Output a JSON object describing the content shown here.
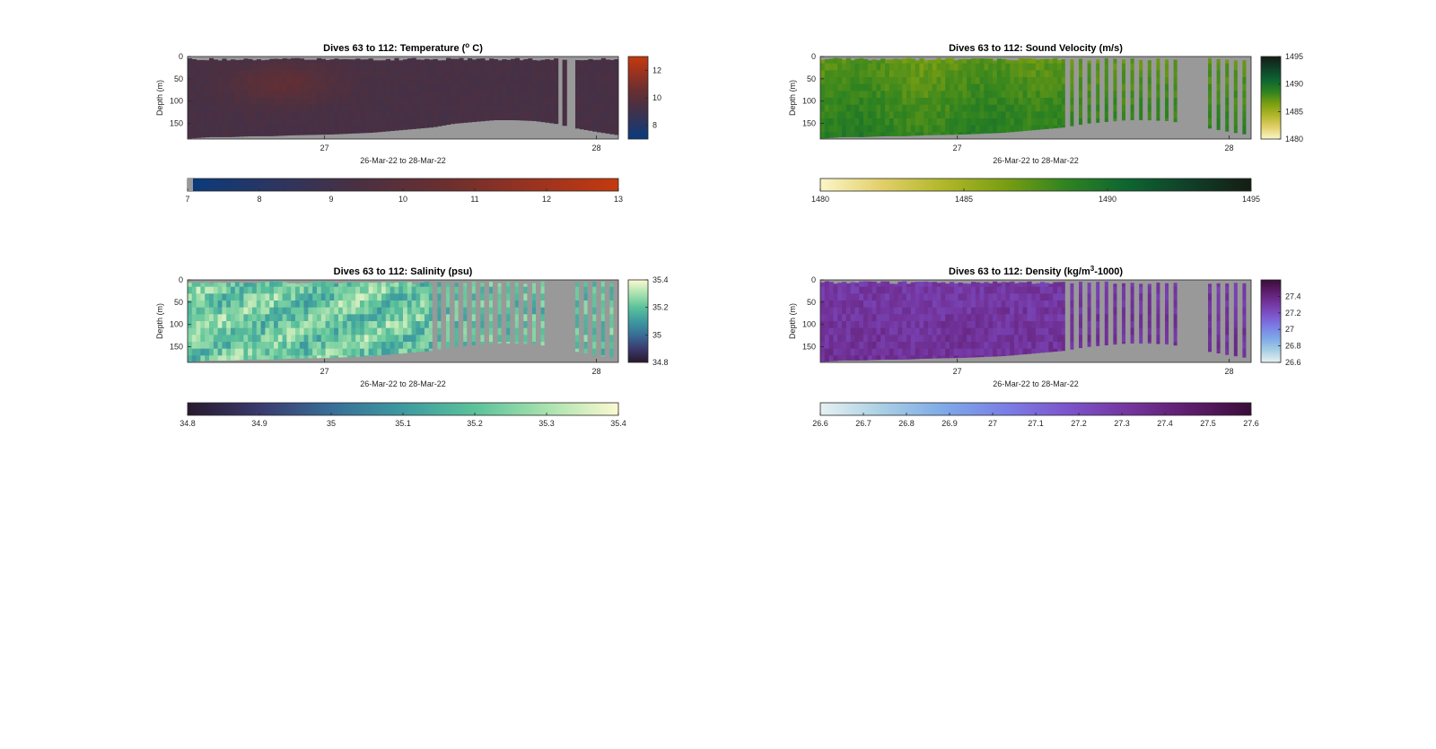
{
  "chart_data": [
    {
      "id": "temperature",
      "type": "heatmap",
      "title_prefix": "Dives 63 to 112: Temperature (",
      "title_sup": "o",
      "title_suffix": " C)",
      "xlabel": "26-Mar-22 to 28-Mar-22",
      "ylabel": "Depth (m)",
      "x_range": [
        "26-Mar-22 09:45",
        "28-Mar-22 03:00"
      ],
      "x_ticks": [
        "27",
        "28"
      ],
      "y_range": [
        0,
        185
      ],
      "y_ticks": [
        "0",
        "50",
        "100",
        "150"
      ],
      "colorbar_ticks": [
        "8",
        "10",
        "12"
      ],
      "colorbar_range": [
        7,
        13
      ],
      "bottom_colorbar_ticks": [
        "7",
        "8",
        "9",
        "10",
        "11",
        "12",
        "13"
      ],
      "colormap": [
        "#083b7e",
        "#2c3560",
        "#4a3042",
        "#6b2f2f",
        "#9a3220",
        "#c43a0e"
      ],
      "missing_color": "#999999",
      "values_summary": {
        "typical": 9.3,
        "warm_patch": 10.2,
        "min": 8.8,
        "max": 10.4
      },
      "sections": 100,
      "bottom_depth_profile": [
        183,
        180,
        180,
        178,
        178,
        176,
        175,
        174,
        172,
        170,
        166,
        162,
        158,
        150,
        146,
        142,
        142,
        144,
        150,
        160,
        168,
        175
      ],
      "gaps": []
    },
    {
      "id": "sound_velocity",
      "type": "heatmap",
      "title_prefix": "Dives 63 to 112: Sound Velocity (m/s)",
      "title_sup": "",
      "title_suffix": "",
      "xlabel": "26-Mar-22 to 28-Mar-22",
      "ylabel": "Depth (m)",
      "x_range": [
        "26-Mar-22 09:45",
        "28-Mar-22 03:00"
      ],
      "x_ticks": [
        "27",
        "28"
      ],
      "y_range": [
        0,
        185
      ],
      "y_ticks": [
        "0",
        "50",
        "100",
        "150"
      ],
      "colorbar_ticks": [
        "1480",
        "1485",
        "1490",
        "1495"
      ],
      "colorbar_range": [
        1480,
        1495
      ],
      "bottom_colorbar_ticks": [
        "1480",
        "1485",
        "1490",
        "1495"
      ],
      "colormap": [
        "#fbf6c8",
        "#e2cf6a",
        "#b1b729",
        "#7a9e12",
        "#2f8320",
        "#0d6531",
        "#103f28",
        "#151d13"
      ],
      "missing_color": "#999999",
      "values_summary": {
        "typical": 1488,
        "min": 1486,
        "max": 1490
      },
      "sections": 100,
      "bottom_depth_profile": [
        183,
        180,
        180,
        178,
        178,
        176,
        175,
        174,
        172,
        170,
        166,
        162,
        158,
        150,
        146,
        142,
        142,
        144,
        150,
        160,
        168,
        175
      ],
      "gaps": [
        0.56
      ]
    },
    {
      "id": "salinity",
      "type": "heatmap",
      "title_prefix": "Dives 63 to 112: Salinity (psu)",
      "title_sup": "",
      "title_suffix": "",
      "xlabel": "26-Mar-22 to 28-Mar-22",
      "ylabel": "Depth (m)",
      "x_range": [
        "26-Mar-22 09:45",
        "28-Mar-22 03:00"
      ],
      "x_ticks": [
        "27",
        "28"
      ],
      "y_range": [
        0,
        185
      ],
      "y_ticks": [
        "0",
        "50",
        "100",
        "150"
      ],
      "colorbar_ticks": [
        "34.8",
        "35",
        "35.2",
        "35.4"
      ],
      "colorbar_range": [
        34.8,
        35.4
      ],
      "bottom_colorbar_ticks": [
        "34.8",
        "34.9",
        "35",
        "35.1",
        "35.2",
        "35.3",
        "35.4"
      ],
      "colormap": [
        "#28192d",
        "#3a3a6e",
        "#386e97",
        "#3d9aa0",
        "#5bc29a",
        "#a8e2ae",
        "#fcf9d0"
      ],
      "missing_color": "#999999",
      "values_summary": {
        "typical": 35.22,
        "min": 35.05,
        "max": 35.38
      },
      "sections": 100,
      "bottom_depth_profile": [
        183,
        180,
        180,
        178,
        178,
        176,
        175,
        174,
        172,
        170,
        166,
        162,
        158,
        150,
        146,
        142,
        142,
        144,
        150,
        160,
        168,
        175
      ],
      "gaps": [
        0.56
      ]
    },
    {
      "id": "density",
      "type": "heatmap",
      "title_prefix": "Dives 63 to 112: Density (kg/m",
      "title_sup": "3",
      "title_suffix": "-1000)",
      "xlabel": "26-Mar-22 to 28-Mar-22",
      "ylabel": "Depth (m)",
      "x_range": [
        "26-Mar-22 09:45",
        "28-Mar-22 03:00"
      ],
      "x_ticks": [
        "27",
        "28"
      ],
      "y_range": [
        0,
        185
      ],
      "y_ticks": [
        "0",
        "50",
        "100",
        "150"
      ],
      "colorbar_ticks": [
        "26.6",
        "26.8",
        "27",
        "27.2",
        "27.4"
      ],
      "colorbar_range": [
        26.6,
        27.6
      ],
      "bottom_colorbar_ticks": [
        "26.6",
        "26.7",
        "26.8",
        "26.9",
        "27",
        "27.1",
        "27.2",
        "27.3",
        "27.4",
        "27.5",
        "27.6"
      ],
      "colormap": [
        "#e6f1f2",
        "#a9cfe4",
        "#7eaae8",
        "#7b7fe6",
        "#7c55cc",
        "#74359f",
        "#5d1d6d",
        "#3a0d38"
      ],
      "missing_color": "#999999",
      "values_summary": {
        "typical": 27.3,
        "min": 27.25,
        "max": 27.35
      },
      "sections": 100,
      "bottom_depth_profile": [
        183,
        180,
        180,
        178,
        178,
        176,
        175,
        174,
        172,
        170,
        166,
        162,
        158,
        150,
        146,
        142,
        142,
        144,
        150,
        160,
        168,
        175
      ],
      "gaps": [
        0.56
      ]
    }
  ]
}
